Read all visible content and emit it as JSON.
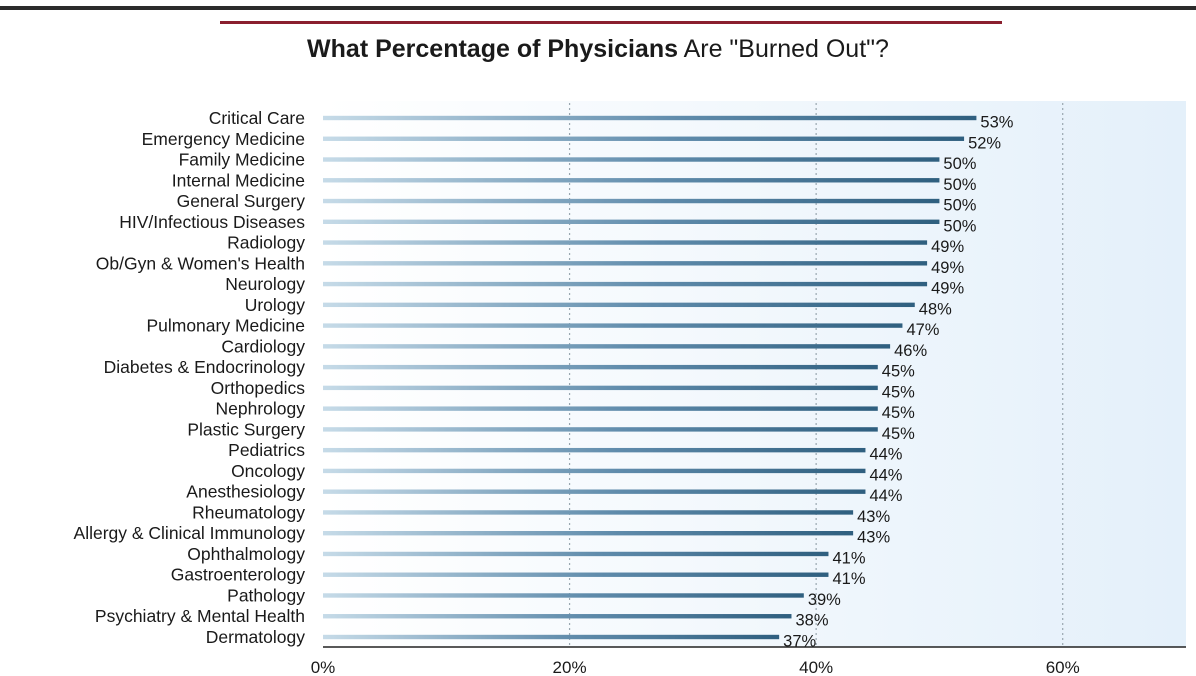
{
  "chart_data": {
    "type": "bar",
    "orientation": "horizontal",
    "title_bold": "What Percentage of Physicians",
    "title_rest": " Are \"Burned Out\"?",
    "categories": [
      "Critical Care",
      "Emergency Medicine",
      "Family Medicine",
      "Internal Medicine",
      "General Surgery",
      "HIV/Infectious Diseases",
      "Radiology",
      "Ob/Gyn & Women's Health",
      "Neurology",
      "Urology",
      "Pulmonary Medicine",
      "Cardiology",
      "Diabetes & Endocrinology",
      "Orthopedics",
      "Nephrology",
      "Plastic Surgery",
      "Pediatrics",
      "Oncology",
      "Anesthesiology",
      "Rheumatology",
      "Allergy & Clinical Immunology",
      "Ophthalmology",
      "Gastroenterology",
      "Pathology",
      "Psychiatry & Mental Health",
      "Dermatology"
    ],
    "values": [
      53,
      52,
      50,
      50,
      50,
      50,
      49,
      49,
      49,
      48,
      47,
      46,
      45,
      45,
      45,
      45,
      44,
      44,
      44,
      43,
      43,
      41,
      41,
      39,
      38,
      37
    ],
    "value_labels": [
      "53%",
      "52%",
      "50%",
      "50%",
      "50%",
      "50%",
      "49%",
      "49%",
      "49%",
      "48%",
      "47%",
      "46%",
      "45%",
      "45%",
      "45%",
      "45%",
      "44%",
      "44%",
      "44%",
      "43%",
      "43%",
      "41%",
      "41%",
      "39%",
      "38%",
      "37%"
    ],
    "xlim": [
      0,
      70
    ],
    "xticks": [
      0,
      20,
      40,
      60
    ],
    "xtick_labels": [
      "0%",
      "20%",
      "40%",
      "60%"
    ],
    "grid": "vertical dotted",
    "colors": {
      "bar": "#2f5f7f",
      "bar_light": "#c6dbe8",
      "plot_background_left": "#ffffff",
      "plot_background_right": "#e4f0fa",
      "title_rule": "#8a1f2e",
      "top_rule": "#2b2b2b",
      "text": "#1a1a1a"
    }
  }
}
